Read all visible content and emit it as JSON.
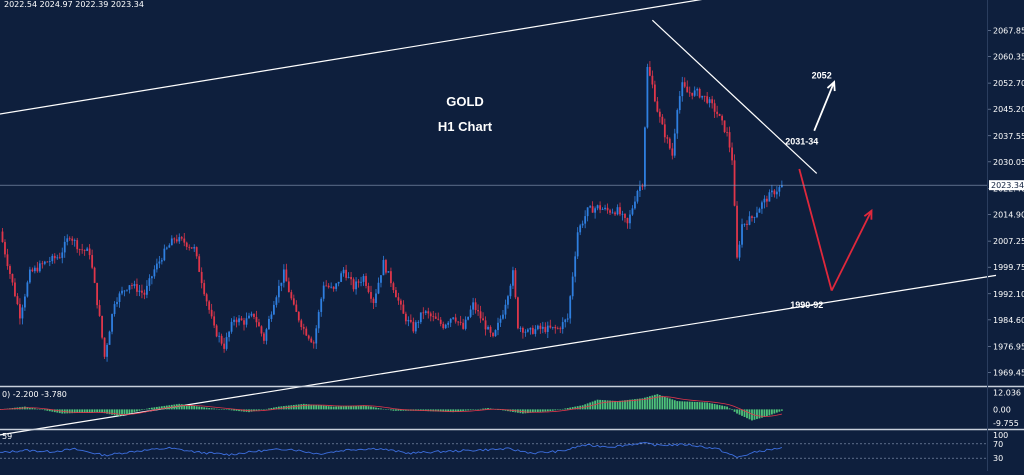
{
  "header": {
    "ohlc": "2022.54 2024.97 2022.39 2023.34"
  },
  "chart_data": {
    "type": "candlestick",
    "title": "GOLD",
    "subtitle": "H1 Chart",
    "instrument": "GOLD",
    "timeframe": "H1",
    "ylim": [
      1965,
      2072
    ],
    "yticks": [
      "2067.85",
      "2060.35",
      "2052.70",
      "2045.20",
      "2037.55",
      "2030.05",
      "2022.40",
      "2014.90",
      "2007.25",
      "1999.75",
      "1992.10",
      "1984.60",
      "1976.95",
      "1969.45"
    ],
    "last_price": "2023.34",
    "colors": {
      "bull": "#2f7fe0",
      "bear": "#e0364a",
      "background": "#0e1f3d",
      "text": "#ffffff",
      "projection": "#e0283c"
    },
    "price_path": [
      {
        "i": 0,
        "p": 2010
      },
      {
        "i": 5,
        "p": 1995
      },
      {
        "i": 8,
        "p": 1986
      },
      {
        "i": 12,
        "p": 1998
      },
      {
        "i": 18,
        "p": 2001
      },
      {
        "i": 24,
        "p": 2003
      },
      {
        "i": 28,
        "p": 2009
      },
      {
        "i": 32,
        "p": 2005
      },
      {
        "i": 36,
        "p": 2004
      },
      {
        "i": 40,
        "p": 1985
      },
      {
        "i": 42,
        "p": 1974
      },
      {
        "i": 46,
        "p": 1990
      },
      {
        "i": 52,
        "p": 1995
      },
      {
        "i": 58,
        "p": 1992
      },
      {
        "i": 62,
        "p": 1999
      },
      {
        "i": 66,
        "p": 2004
      },
      {
        "i": 70,
        "p": 2008
      },
      {
        "i": 74,
        "p": 2007
      },
      {
        "i": 78,
        "p": 2005
      },
      {
        "i": 82,
        "p": 1993
      },
      {
        "i": 86,
        "p": 1982
      },
      {
        "i": 90,
        "p": 1977
      },
      {
        "i": 94,
        "p": 1985
      },
      {
        "i": 98,
        "p": 1984
      },
      {
        "i": 102,
        "p": 1986
      },
      {
        "i": 106,
        "p": 1979
      },
      {
        "i": 110,
        "p": 1990
      },
      {
        "i": 114,
        "p": 1998
      },
      {
        "i": 118,
        "p": 1988
      },
      {
        "i": 122,
        "p": 1982
      },
      {
        "i": 126,
        "p": 1978
      },
      {
        "i": 130,
        "p": 1995
      },
      {
        "i": 134,
        "p": 1993
      },
      {
        "i": 138,
        "p": 1999
      },
      {
        "i": 142,
        "p": 1994
      },
      {
        "i": 146,
        "p": 1997
      },
      {
        "i": 150,
        "p": 1990
      },
      {
        "i": 154,
        "p": 2001
      },
      {
        "i": 158,
        "p": 1994
      },
      {
        "i": 162,
        "p": 1986
      },
      {
        "i": 166,
        "p": 1982
      },
      {
        "i": 170,
        "p": 1987
      },
      {
        "i": 174,
        "p": 1985
      },
      {
        "i": 178,
        "p": 1983
      },
      {
        "i": 182,
        "p": 1986
      },
      {
        "i": 186,
        "p": 1982
      },
      {
        "i": 190,
        "p": 1989
      },
      {
        "i": 194,
        "p": 1984
      },
      {
        "i": 198,
        "p": 1979
      },
      {
        "i": 202,
        "p": 1987
      },
      {
        "i": 206,
        "p": 1998
      },
      {
        "i": 208,
        "p": 1983
      },
      {
        "i": 212,
        "p": 1981
      },
      {
        "i": 216,
        "p": 1982
      },
      {
        "i": 220,
        "p": 1982
      },
      {
        "i": 224,
        "p": 1982
      },
      {
        "i": 228,
        "p": 1985
      },
      {
        "i": 232,
        "p": 2010
      },
      {
        "i": 236,
        "p": 2016
      },
      {
        "i": 240,
        "p": 2017
      },
      {
        "i": 244,
        "p": 2016
      },
      {
        "i": 248,
        "p": 2016
      },
      {
        "i": 252,
        "p": 2012
      },
      {
        "i": 256,
        "p": 2022
      },
      {
        "i": 258,
        "p": 2024
      },
      {
        "i": 260,
        "p": 2057
      },
      {
        "i": 262,
        "p": 2052
      },
      {
        "i": 264,
        "p": 2045
      },
      {
        "i": 266,
        "p": 2040
      },
      {
        "i": 270,
        "p": 2032
      },
      {
        "i": 272,
        "p": 2046
      },
      {
        "i": 274,
        "p": 2052
      },
      {
        "i": 276,
        "p": 2050
      },
      {
        "i": 280,
        "p": 2050
      },
      {
        "i": 284,
        "p": 2048
      },
      {
        "i": 288,
        "p": 2044
      },
      {
        "i": 292,
        "p": 2038
      },
      {
        "i": 294,
        "p": 2031
      },
      {
        "i": 296,
        "p": 2002
      },
      {
        "i": 298,
        "p": 2012
      },
      {
        "i": 302,
        "p": 2014
      },
      {
        "i": 306,
        "p": 2018
      },
      {
        "i": 310,
        "p": 2021
      },
      {
        "i": 314,
        "p": 2023
      }
    ],
    "trendlines": [
      {
        "name": "upper-channel",
        "x1": -1,
        "y1": 2043.7,
        "x2": 325,
        "y2": 2081.8
      },
      {
        "name": "lower-channel",
        "x1": -1,
        "y1": 1951.4,
        "x2": 400,
        "y2": 1997.4
      },
      {
        "name": "descending-resistance",
        "x1": 262,
        "y1": 2070.8,
        "x2": 328,
        "y2": 2026.7
      }
    ],
    "projections": [
      {
        "name": "projection-down",
        "color": "#e0283c",
        "from": {
          "i": 321,
          "p": 2028
        },
        "to": {
          "i": 334,
          "p": 1993
        }
      },
      {
        "name": "projection-up",
        "color": "#e0283c",
        "from": {
          "i": 334,
          "p": 1993
        },
        "to": {
          "i": 350,
          "p": 2016
        }
      },
      {
        "name": "bullish-scenario",
        "color": "#ffffff",
        "from": {
          "i": 327,
          "p": 2039
        },
        "to": {
          "i": 335,
          "p": 2053
        }
      }
    ],
    "annotations": [
      {
        "name": "target-2052",
        "text": "2052",
        "i": 330,
        "p": 2054
      },
      {
        "name": "resistance-label",
        "text": "2031-34",
        "i": 322,
        "p": 2035
      },
      {
        "name": "support-label",
        "text": "1990-92",
        "i": 324,
        "p": 1988
      }
    ],
    "macd": {
      "header": "0) -2.200 -3.780",
      "yticks": [
        "12.036",
        "0.00",
        "-9.755"
      ],
      "ylim": [
        -12,
        14
      ],
      "hist_path": [
        {
          "i": 0,
          "v": 0
        },
        {
          "i": 10,
          "v": 2
        },
        {
          "i": 25,
          "v": -3
        },
        {
          "i": 40,
          "v": -2
        },
        {
          "i": 48,
          "v": -5
        },
        {
          "i": 60,
          "v": 1
        },
        {
          "i": 72,
          "v": 4
        },
        {
          "i": 84,
          "v": 1
        },
        {
          "i": 100,
          "v": -2
        },
        {
          "i": 112,
          "v": 2
        },
        {
          "i": 122,
          "v": 4
        },
        {
          "i": 134,
          "v": 2
        },
        {
          "i": 146,
          "v": 3
        },
        {
          "i": 158,
          "v": -1
        },
        {
          "i": 168,
          "v": -1
        },
        {
          "i": 182,
          "v": -2
        },
        {
          "i": 196,
          "v": 1
        },
        {
          "i": 210,
          "v": -3
        },
        {
          "i": 222,
          "v": -1
        },
        {
          "i": 234,
          "v": 3
        },
        {
          "i": 240,
          "v": 7
        },
        {
          "i": 248,
          "v": 6
        },
        {
          "i": 258,
          "v": 8
        },
        {
          "i": 264,
          "v": 11
        },
        {
          "i": 272,
          "v": 6
        },
        {
          "i": 284,
          "v": 5
        },
        {
          "i": 292,
          "v": 2
        },
        {
          "i": 296,
          "v": -3
        },
        {
          "i": 302,
          "v": -8
        },
        {
          "i": 308,
          "v": -5
        },
        {
          "i": 314,
          "v": -1
        }
      ]
    },
    "rsi": {
      "header": "59",
      "yticks": [
        "100",
        "70",
        "30"
      ],
      "ylim": [
        0,
        100
      ],
      "levels": [
        70,
        30
      ],
      "path": [
        {
          "i": 0,
          "v": 45
        },
        {
          "i": 10,
          "v": 52
        },
        {
          "i": 20,
          "v": 48
        },
        {
          "i": 30,
          "v": 55
        },
        {
          "i": 42,
          "v": 38
        },
        {
          "i": 55,
          "v": 50
        },
        {
          "i": 68,
          "v": 58
        },
        {
          "i": 80,
          "v": 46
        },
        {
          "i": 92,
          "v": 40
        },
        {
          "i": 104,
          "v": 50
        },
        {
          "i": 116,
          "v": 56
        },
        {
          "i": 128,
          "v": 42
        },
        {
          "i": 140,
          "v": 54
        },
        {
          "i": 152,
          "v": 57
        },
        {
          "i": 164,
          "v": 44
        },
        {
          "i": 176,
          "v": 48
        },
        {
          "i": 190,
          "v": 52
        },
        {
          "i": 204,
          "v": 56
        },
        {
          "i": 214,
          "v": 44
        },
        {
          "i": 226,
          "v": 50
        },
        {
          "i": 234,
          "v": 66
        },
        {
          "i": 246,
          "v": 62
        },
        {
          "i": 258,
          "v": 72
        },
        {
          "i": 264,
          "v": 66
        },
        {
          "i": 276,
          "v": 68
        },
        {
          "i": 288,
          "v": 56
        },
        {
          "i": 296,
          "v": 32
        },
        {
          "i": 304,
          "v": 48
        },
        {
          "i": 314,
          "v": 59
        }
      ]
    }
  }
}
